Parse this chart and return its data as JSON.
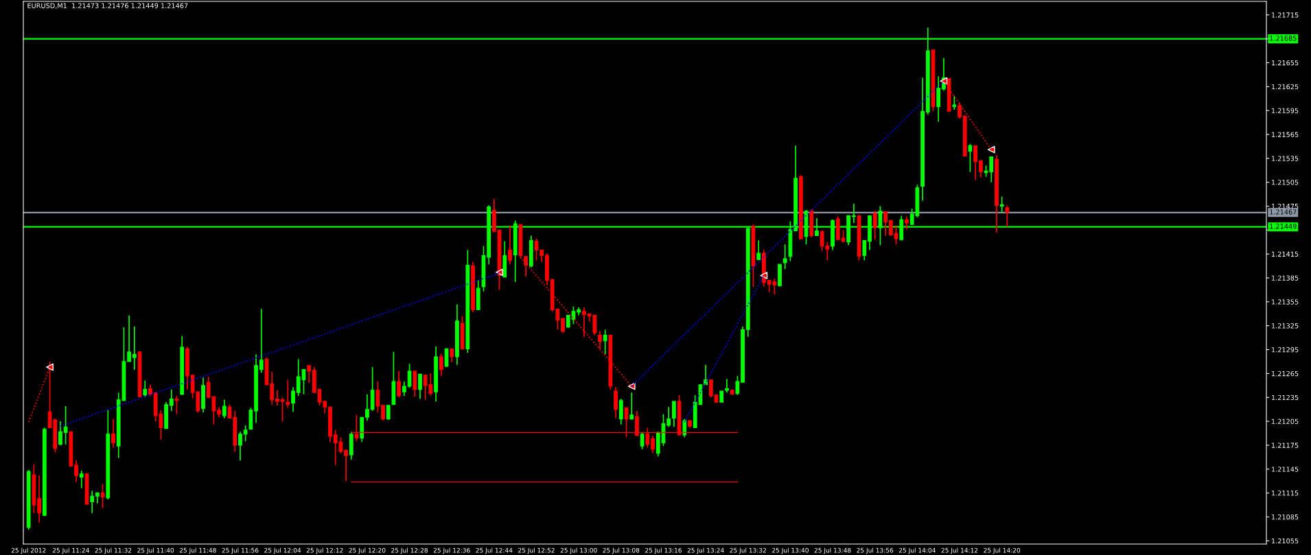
{
  "chart_data": {
    "type": "candlestick",
    "title": "EURUSD,M1  1.21473 1.21476 1.21449 1.21467",
    "colors": [
      "#00ff00",
      "#ff0000",
      "#ff0000",
      "#00ff00",
      "#ff0000",
      "#ff0000",
      "#00ff00",
      "#00ff00",
      "#ff0000",
      "#ff0000",
      "#00ff00",
      "#ff0000",
      "#00ff00",
      "#00ff00",
      "#ff0000",
      "#00ff00",
      "#ff0000",
      "#00ff00",
      "#00ff00",
      "#00ff00",
      "#00ff00",
      "#ff0000",
      "#00ff00",
      "#ff0000",
      "#ff0000",
      "#ff0000",
      "#00ff00",
      "#00ff00",
      "#ff0000",
      "#00ff00",
      "#ff0000",
      "#ff0000",
      "#ff0000",
      "#00ff00",
      "#ff0000",
      "#ff0000",
      "#ff0000",
      "#00ff00",
      "#ff0000",
      "#ff0000",
      "#00ff00",
      "#00ff00",
      "#00ff00",
      "#00ff00",
      "#00ff00",
      "#ff0000",
      "#ff0000",
      "#ff0000",
      "#ff0000",
      "#ff0000",
      "#00ff00",
      "#00ff00",
      "#00ff00",
      "#ff0000",
      "#ff0000",
      "#ff0000",
      "#ff0000",
      "#ff0000",
      "#ff0000",
      "#ff0000",
      "#ff0000",
      "#00ff00",
      "#ff0000",
      "#00ff00",
      "#00ff00",
      "#00ff00",
      "#ff0000",
      "#ff0000",
      "#00ff00",
      "#00ff00",
      "#ff0000",
      "#00ff00",
      "#00ff00",
      "#ff0000",
      "#00ff00",
      "#ff0000",
      "#ff0000",
      "#00ff00",
      "#ff0000",
      "#00ff00",
      "#ff0000",
      "#00ff00",
      "#ff0000",
      "#00ff00",
      "#ff0000",
      "#00ff00",
      "#00ff00",
      "#00ff00",
      "#ff0000",
      "#ff0000",
      "#00ff00",
      "#ff0000",
      "#00ff00",
      "#ff0000",
      "#ff0000",
      "#00ff00",
      "#ff0000",
      "#ff0000",
      "#ff0000",
      "#ff0000",
      "#ff0000",
      "#ff0000",
      "#00ff00",
      "#00ff00",
      "#00ff00",
      "#ff0000",
      "#ff0000",
      "#ff0000",
      "#ff0000",
      "#00ff00",
      "#ff0000",
      "#ff0000",
      "#00ff00",
      "#ff0000",
      "#00ff00",
      "#ff0000",
      "#00ff00",
      "#ff0000",
      "#ff0000",
      "#00ff00",
      "#00ff00",
      "#00ff00",
      "#00ff00",
      "#ff0000",
      "#00ff00",
      "#ff0000",
      "#00ff00",
      "#00ff00",
      "#00ff00",
      "#ff0000",
      "#ff0000",
      "#00ff00",
      "#00ff00",
      "#ff0000",
      "#00ff00",
      "#00ff00",
      "#00ff00",
      "#ff0000",
      "#00ff00",
      "#ff0000",
      "#ff0000",
      "#ff0000",
      "#00ff00",
      "#00ff00",
      "#00ff00",
      "#00ff00",
      "#ff0000",
      "#00ff00",
      "#ff0000",
      "#00ff00",
      "#ff0000",
      "#ff0000",
      "#00ff00",
      "#ff0000",
      "#ff0000",
      "#00ff00",
      "#00ff00",
      "#ff0000",
      "#00ff00",
      "#00ff00",
      "#ff0000",
      "#00ff00",
      "#ff0000",
      "#ff0000",
      "#ff0000",
      "#00ff00",
      "#ff0000",
      "#00ff00",
      "#00ff00",
      "#00ff00",
      "#00ff00",
      "#ff0000",
      "#00ff00",
      "#00ff00",
      "#ff0000",
      "#00ff00",
      "#ff0000",
      "#ff0000",
      "#00ff00",
      "#ff0000",
      "#ff0000",
      "#00ff00",
      "#00ff00",
      "#ff0000",
      "#00ff00",
      "#ff0000"
    ],
    "x": [
      "2012-07-25T11:16",
      "2012-07-25T11:17",
      "2012-07-25T11:18",
      "2012-07-25T11:19",
      "2012-07-25T11:20",
      "2012-07-25T11:21",
      "2012-07-25T11:22",
      "2012-07-25T11:23",
      "2012-07-25T11:24",
      "2012-07-25T11:25",
      "2012-07-25T11:26",
      "2012-07-25T11:27",
      "2012-07-25T11:28",
      "2012-07-25T11:29",
      "2012-07-25T11:30",
      "2012-07-25T11:31",
      "2012-07-25T11:32",
      "2012-07-25T11:33",
      "2012-07-25T11:34",
      "2012-07-25T11:35",
      "2012-07-25T11:36",
      "2012-07-25T11:37",
      "2012-07-25T11:38",
      "2012-07-25T11:39",
      "2012-07-25T11:40",
      "2012-07-25T11:41",
      "2012-07-25T11:42",
      "2012-07-25T11:43",
      "2012-07-25T11:44",
      "2012-07-25T11:45",
      "2012-07-25T11:46",
      "2012-07-25T11:47",
      "2012-07-25T11:48",
      "2012-07-25T11:49",
      "2012-07-25T11:50",
      "2012-07-25T11:51",
      "2012-07-25T11:52",
      "2012-07-25T11:53",
      "2012-07-25T11:54",
      "2012-07-25T11:55",
      "2012-07-25T11:56",
      "2012-07-25T11:57",
      "2012-07-25T11:58",
      "2012-07-25T11:59",
      "2012-07-25T12:00",
      "2012-07-25T12:01",
      "2012-07-25T12:02",
      "2012-07-25T12:03",
      "2012-07-25T12:04",
      "2012-07-25T12:05",
      "2012-07-25T12:06",
      "2012-07-25T12:07",
      "2012-07-25T12:08",
      "2012-07-25T12:09",
      "2012-07-25T12:10",
      "2012-07-25T12:11",
      "2012-07-25T12:12",
      "2012-07-25T12:13",
      "2012-07-25T12:14",
      "2012-07-25T12:15",
      "2012-07-25T12:16",
      "2012-07-25T12:17",
      "2012-07-25T12:18",
      "2012-07-25T12:19",
      "2012-07-25T12:20",
      "2012-07-25T12:21",
      "2012-07-25T12:22",
      "2012-07-25T12:23",
      "2012-07-25T12:24",
      "2012-07-25T12:25",
      "2012-07-25T12:26",
      "2012-07-25T12:27",
      "2012-07-25T12:28",
      "2012-07-25T12:29",
      "2012-07-25T12:30",
      "2012-07-25T12:31",
      "2012-07-25T12:32",
      "2012-07-25T12:33",
      "2012-07-25T12:34",
      "2012-07-25T12:35",
      "2012-07-25T12:36",
      "2012-07-25T12:37",
      "2012-07-25T12:38",
      "2012-07-25T12:39",
      "2012-07-25T12:40",
      "2012-07-25T12:41",
      "2012-07-25T12:42",
      "2012-07-25T12:43",
      "2012-07-25T12:44",
      "2012-07-25T12:45",
      "2012-07-25T12:46",
      "2012-07-25T12:47",
      "2012-07-25T12:48",
      "2012-07-25T12:49",
      "2012-07-25T12:50",
      "2012-07-25T12:51",
      "2012-07-25T12:52",
      "2012-07-25T12:53",
      "2012-07-25T12:54",
      "2012-07-25T12:55",
      "2012-07-25T12:56",
      "2012-07-25T12:57",
      "2012-07-25T12:58",
      "2012-07-25T12:59",
      "2012-07-25T13:00",
      "2012-07-25T13:01",
      "2012-07-25T13:02",
      "2012-07-25T13:03",
      "2012-07-25T13:04",
      "2012-07-25T13:05",
      "2012-07-25T13:06",
      "2012-07-25T13:07",
      "2012-07-25T13:08",
      "2012-07-25T13:09",
      "2012-07-25T13:10",
      "2012-07-25T13:11",
      "2012-07-25T13:12",
      "2012-07-25T13:13",
      "2012-07-25T13:14",
      "2012-07-25T13:15",
      "2012-07-25T13:16",
      "2012-07-25T13:17",
      "2012-07-25T13:18",
      "2012-07-25T13:19",
      "2012-07-25T13:20",
      "2012-07-25T13:21",
      "2012-07-25T13:22",
      "2012-07-25T13:23",
      "2012-07-25T13:24",
      "2012-07-25T13:25",
      "2012-07-25T13:26",
      "2012-07-25T13:27",
      "2012-07-25T13:28",
      "2012-07-25T13:29",
      "2012-07-25T13:30",
      "2012-07-25T13:31",
      "2012-07-25T13:32",
      "2012-07-25T13:33",
      "2012-07-25T13:34",
      "2012-07-25T13:35",
      "2012-07-25T13:36",
      "2012-07-25T13:37",
      "2012-07-25T13:38",
      "2012-07-25T13:39",
      "2012-07-25T13:40",
      "2012-07-25T13:41",
      "2012-07-25T13:42",
      "2012-07-25T13:43",
      "2012-07-25T13:44",
      "2012-07-25T13:45",
      "2012-07-25T13:46",
      "2012-07-25T13:47",
      "2012-07-25T13:48",
      "2012-07-25T13:49",
      "2012-07-25T13:50",
      "2012-07-25T13:51",
      "2012-07-25T13:52",
      "2012-07-25T13:53",
      "2012-07-25T13:54",
      "2012-07-25T13:55",
      "2012-07-25T13:56",
      "2012-07-25T13:57",
      "2012-07-25T13:58",
      "2012-07-25T13:59",
      "2012-07-25T14:00",
      "2012-07-25T14:01",
      "2012-07-25T14:02",
      "2012-07-25T14:03",
      "2012-07-25T14:04",
      "2012-07-25T14:05",
      "2012-07-25T14:06",
      "2012-07-25T14:07",
      "2012-07-25T14:08",
      "2012-07-25T14:09",
      "2012-07-25T14:10",
      "2012-07-25T14:11",
      "2012-07-25T14:12",
      "2012-07-25T14:13",
      "2012-07-25T14:14",
      "2012-07-25T14:15",
      "2012-07-25T14:16",
      "2012-07-25T14:17",
      "2012-07-25T14:18",
      "2012-07-25T14:19",
      "2012-07-25T14:20",
      "2012-07-25T14:21"
    ],
    "ohlc": [
      [
        1.21072,
        1.21144,
        1.21069,
        1.21142
      ],
      [
        1.21138,
        1.21151,
        1.2109,
        1.211
      ],
      [
        1.21108,
        1.21137,
        1.21078,
        1.2109
      ],
      [
        1.21087,
        1.21197,
        1.21086,
        1.21195
      ],
      [
        1.21217,
        1.2128,
        1.21197,
        1.21197
      ],
      [
        1.21207,
        1.21208,
        1.21166,
        1.21171
      ],
      [
        1.21176,
        1.21205,
        1.21175,
        1.21192
      ],
      [
        1.21191,
        1.21224,
        1.21176,
        1.21198
      ],
      [
        1.21192,
        1.21192,
        1.21148,
        1.21149
      ],
      [
        1.2115,
        1.21156,
        1.21129,
        1.21137
      ],
      [
        1.21135,
        1.21143,
        1.21121,
        1.21139
      ],
      [
        1.21139,
        1.2114,
        1.21101,
        1.21101
      ],
      [
        1.21104,
        1.21118,
        1.2109,
        1.21111
      ],
      [
        1.21111,
        1.21116,
        1.21102,
        1.21115
      ],
      [
        1.21115,
        1.21126,
        1.21096,
        1.2111
      ],
      [
        1.21109,
        1.21219,
        1.21107,
        1.21189
      ],
      [
        1.21189,
        1.21208,
        1.21172,
        1.21178
      ],
      [
        1.21174,
        1.21241,
        1.21159,
        1.21232
      ],
      [
        1.21231,
        1.21323,
        1.21231,
        1.2128
      ],
      [
        1.2128,
        1.21338,
        1.2128,
        1.21292
      ],
      [
        1.21285,
        1.21324,
        1.2127,
        1.21289
      ],
      [
        1.21292,
        1.21293,
        1.21235,
        1.21236
      ],
      [
        1.21238,
        1.21256,
        1.21235,
        1.21245
      ],
      [
        1.21246,
        1.21251,
        1.21237,
        1.21239
      ],
      [
        1.21241,
        1.21241,
        1.21205,
        1.21212
      ],
      [
        1.21214,
        1.21219,
        1.21182,
        1.21197
      ],
      [
        1.21196,
        1.21229,
        1.21196,
        1.21226
      ],
      [
        1.21225,
        1.21245,
        1.21218,
        1.21233
      ],
      [
        1.21233,
        1.21237,
        1.21214,
        1.21231
      ],
      [
        1.21239,
        1.21312,
        1.21238,
        1.21298
      ],
      [
        1.21296,
        1.21298,
        1.21245,
        1.21262
      ],
      [
        1.21263,
        1.21263,
        1.21234,
        1.21241
      ],
      [
        1.21242,
        1.21242,
        1.21216,
        1.21218
      ],
      [
        1.21221,
        1.2126,
        1.21216,
        1.2125
      ],
      [
        1.21254,
        1.21261,
        1.21234,
        1.21235
      ],
      [
        1.21236,
        1.21236,
        1.21201,
        1.21218
      ],
      [
        1.21219,
        1.21223,
        1.2121,
        1.21214
      ],
      [
        1.21212,
        1.21232,
        1.21209,
        1.21224
      ],
      [
        1.21223,
        1.21226,
        1.21209,
        1.21209
      ],
      [
        1.2121,
        1.21218,
        1.21167,
        1.21175
      ],
      [
        1.21175,
        1.21192,
        1.21156,
        1.21189
      ],
      [
        1.21189,
        1.212,
        1.2118,
        1.21194
      ],
      [
        1.21195,
        1.21222,
        1.21195,
        1.21219
      ],
      [
        1.21218,
        1.21289,
        1.21203,
        1.21275
      ],
      [
        1.2127,
        1.21346,
        1.21266,
        1.21282
      ],
      [
        1.21283,
        1.21285,
        1.2125,
        1.21251
      ],
      [
        1.21252,
        1.21267,
        1.21226,
        1.21232
      ],
      [
        1.21233,
        1.21244,
        1.21225,
        1.2123
      ],
      [
        1.21232,
        1.21235,
        1.21205,
        1.2123
      ],
      [
        1.21229,
        1.21257,
        1.21222,
        1.21226
      ],
      [
        1.21228,
        1.21248,
        1.21217,
        1.21243
      ],
      [
        1.21241,
        1.21283,
        1.21237,
        1.21261
      ],
      [
        1.21257,
        1.2127,
        1.21239,
        1.2127
      ],
      [
        1.21275,
        1.21275,
        1.21253,
        1.21268
      ],
      [
        1.21269,
        1.21273,
        1.21241,
        1.21241
      ],
      [
        1.21245,
        1.21246,
        1.21225,
        1.21229
      ],
      [
        1.2123,
        1.21231,
        1.21215,
        1.21223
      ],
      [
        1.21223,
        1.21223,
        1.21179,
        1.21186
      ],
      [
        1.21188,
        1.21194,
        1.2115,
        1.21178
      ],
      [
        1.21179,
        1.21185,
        1.21165,
        1.21167
      ],
      [
        1.21169,
        1.21169,
        1.2113,
        1.21162
      ],
      [
        1.21163,
        1.21192,
        1.21157,
        1.21189
      ],
      [
        1.21189,
        1.21213,
        1.2118,
        1.21184
      ],
      [
        1.21184,
        1.2121,
        1.21179,
        1.2121
      ],
      [
        1.2121,
        1.21239,
        1.21206,
        1.2122
      ],
      [
        1.2122,
        1.21273,
        1.21218,
        1.21244
      ],
      [
        1.21244,
        1.21255,
        1.21216,
        1.21224
      ],
      [
        1.21225,
        1.21225,
        1.21206,
        1.21208
      ],
      [
        1.21208,
        1.21225,
        1.21207,
        1.21225
      ],
      [
        1.21226,
        1.21292,
        1.21226,
        1.21255
      ],
      [
        1.21255,
        1.21268,
        1.21235,
        1.21237
      ],
      [
        1.21242,
        1.21255,
        1.21237,
        1.21249
      ],
      [
        1.21249,
        1.21277,
        1.21247,
        1.21268
      ],
      [
        1.21268,
        1.21268,
        1.21236,
        1.21245
      ],
      [
        1.21245,
        1.21265,
        1.21233,
        1.21264
      ],
      [
        1.21263,
        1.21263,
        1.21232,
        1.2125
      ],
      [
        1.21251,
        1.21265,
        1.21237,
        1.2124
      ],
      [
        1.21242,
        1.21299,
        1.2123,
        1.21286
      ],
      [
        1.21286,
        1.2129,
        1.21262,
        1.2127
      ],
      [
        1.21274,
        1.21296,
        1.21273,
        1.21296
      ],
      [
        1.21296,
        1.21296,
        1.21279,
        1.21286
      ],
      [
        1.21286,
        1.21352,
        1.21276,
        1.21331
      ],
      [
        1.21328,
        1.21337,
        1.21295,
        1.21296
      ],
      [
        1.21296,
        1.2142,
        1.21291,
        1.21401
      ],
      [
        1.214,
        1.21405,
        1.21342,
        1.21345
      ],
      [
        1.21345,
        1.21382,
        1.21345,
        1.21372
      ],
      [
        1.21374,
        1.21425,
        1.21368,
        1.21413
      ],
      [
        1.21411,
        1.21476,
        1.21402,
        1.21474
      ],
      [
        1.2147,
        1.21484,
        1.21443,
        1.21443
      ],
      [
        1.21445,
        1.21445,
        1.2137,
        1.21388
      ],
      [
        1.21386,
        1.21431,
        1.21386,
        1.21413
      ],
      [
        1.2142,
        1.21451,
        1.21402,
        1.21407
      ],
      [
        1.21414,
        1.21457,
        1.2138,
        1.21453
      ],
      [
        1.21452,
        1.21452,
        1.21409,
        1.21413
      ],
      [
        1.21412,
        1.21412,
        1.21387,
        1.21401
      ],
      [
        1.214,
        1.21438,
        1.21398,
        1.21432
      ],
      [
        1.21431,
        1.21434,
        1.21407,
        1.2142
      ],
      [
        1.2142,
        1.2142,
        1.21405,
        1.21413
      ],
      [
        1.21413,
        1.21416,
        1.21376,
        1.21382
      ],
      [
        1.21383,
        1.21383,
        1.21343,
        1.21345
      ],
      [
        1.21346,
        1.21346,
        1.2132,
        1.21332
      ],
      [
        1.21334,
        1.21335,
        1.21316,
        1.21318
      ],
      [
        1.21323,
        1.21338,
        1.21323,
        1.21338
      ],
      [
        1.21333,
        1.21349,
        1.21327,
        1.21343
      ],
      [
        1.21342,
        1.21348,
        1.21338,
        1.21345
      ],
      [
        1.21343,
        1.21348,
        1.21311,
        1.21339
      ],
      [
        1.2134,
        1.2134,
        1.2133,
        1.21337
      ],
      [
        1.21338,
        1.21338,
        1.21313,
        1.21316
      ],
      [
        1.21313,
        1.21318,
        1.21295,
        1.21305
      ],
      [
        1.21306,
        1.2132,
        1.21289,
        1.21313
      ],
      [
        1.21313,
        1.21313,
        1.21245,
        1.21249
      ],
      [
        1.21243,
        1.21248,
        1.21209,
        1.2122
      ],
      [
        1.21208,
        1.21233,
        1.21201,
        1.21231
      ],
      [
        1.21222,
        1.21222,
        1.21185,
        1.21208
      ],
      [
        1.21208,
        1.21241,
        1.21207,
        1.21213
      ],
      [
        1.21211,
        1.21218,
        1.21187,
        1.21187
      ],
      [
        1.21174,
        1.21191,
        1.2117,
        1.21189
      ],
      [
        1.21189,
        1.21197,
        1.21172,
        1.21176
      ],
      [
        1.21183,
        1.21187,
        1.21165,
        1.2117
      ],
      [
        1.21165,
        1.21192,
        1.21161,
        1.21191
      ],
      [
        1.21178,
        1.21214,
        1.21174,
        1.21202
      ],
      [
        1.212,
        1.21223,
        1.21198,
        1.21208
      ],
      [
        1.21209,
        1.2123,
        1.21198,
        1.2123
      ],
      [
        1.2123,
        1.21238,
        1.21188,
        1.21188
      ],
      [
        1.21188,
        1.21208,
        1.21185,
        1.21206
      ],
      [
        1.21206,
        1.21206,
        1.21197,
        1.21199
      ],
      [
        1.21197,
        1.21238,
        1.21197,
        1.21229
      ],
      [
        1.21226,
        1.21251,
        1.21226,
        1.21251
      ],
      [
        1.21251,
        1.21276,
        1.21251,
        1.21257
      ],
      [
        1.21257,
        1.21257,
        1.21235,
        1.21237
      ],
      [
        1.21238,
        1.21239,
        1.21228,
        1.21229
      ],
      [
        1.21229,
        1.21243,
        1.21229,
        1.21243
      ],
      [
        1.21244,
        1.21258,
        1.21241,
        1.21246
      ],
      [
        1.21244,
        1.21245,
        1.21239,
        1.21239
      ],
      [
        1.2124,
        1.21262,
        1.21238,
        1.21255
      ],
      [
        1.21254,
        1.21324,
        1.21254,
        1.2132
      ],
      [
        1.2132,
        1.21449,
        1.21311,
        1.21447
      ],
      [
        1.2145,
        1.21452,
        1.21374,
        1.214
      ],
      [
        1.21408,
        1.21432,
        1.21408,
        1.21416
      ],
      [
        1.21416,
        1.2142,
        1.21374,
        1.21379
      ],
      [
        1.21382,
        1.21382,
        1.21367,
        1.21377
      ],
      [
        1.2138,
        1.21384,
        1.21364,
        1.21376
      ],
      [
        1.21375,
        1.21402,
        1.21375,
        1.21402
      ],
      [
        1.21404,
        1.21427,
        1.21396,
        1.21409
      ],
      [
        1.21412,
        1.21456,
        1.21406,
        1.21446
      ],
      [
        1.21444,
        1.21551,
        1.21444,
        1.2151
      ],
      [
        1.21512,
        1.21514,
        1.21434,
        1.21434
      ],
      [
        1.21437,
        1.2147,
        1.21427,
        1.21469
      ],
      [
        1.21469,
        1.21471,
        1.21436,
        1.21438
      ],
      [
        1.21438,
        1.2146,
        1.21438,
        1.21444
      ],
      [
        1.21443,
        1.21445,
        1.21419,
        1.21425
      ],
      [
        1.21425,
        1.2143,
        1.21407,
        1.21421
      ],
      [
        1.21425,
        1.21458,
        1.2142,
        1.21457
      ],
      [
        1.21459,
        1.21462,
        1.21433,
        1.21433
      ],
      [
        1.21435,
        1.21445,
        1.21429,
        1.21431
      ],
      [
        1.2143,
        1.21464,
        1.21426,
        1.21463
      ],
      [
        1.21462,
        1.21478,
        1.21454,
        1.21463
      ],
      [
        1.21463,
        1.21464,
        1.21407,
        1.21412
      ],
      [
        1.21413,
        1.21432,
        1.21407,
        1.21432
      ],
      [
        1.21431,
        1.21463,
        1.2142,
        1.21463
      ],
      [
        1.21466,
        1.21469,
        1.21433,
        1.21448
      ],
      [
        1.21448,
        1.21475,
        1.21426,
        1.21469
      ],
      [
        1.21468,
        1.21468,
        1.21438,
        1.21455
      ],
      [
        1.21457,
        1.21457,
        1.21438,
        1.21439
      ],
      [
        1.21441,
        1.21451,
        1.21427,
        1.21434
      ],
      [
        1.21433,
        1.21463,
        1.21432,
        1.21458
      ],
      [
        1.21458,
        1.21462,
        1.21446,
        1.21454
      ],
      [
        1.21452,
        1.21472,
        1.21452,
        1.21465
      ],
      [
        1.21463,
        1.21502,
        1.21461,
        1.21498
      ],
      [
        1.215,
        1.21636,
        1.21482,
        1.21594
      ],
      [
        1.21593,
        1.21699,
        1.2159,
        1.2167
      ],
      [
        1.21671,
        1.21671,
        1.21594,
        1.216
      ],
      [
        1.216,
        1.21638,
        1.21581,
        1.21623
      ],
      [
        1.21622,
        1.21661,
        1.2162,
        1.21636
      ],
      [
        1.21635,
        1.21635,
        1.21594,
        1.21594
      ],
      [
        1.216,
        1.21613,
        1.21596,
        1.21602
      ],
      [
        1.21601,
        1.21605,
        1.21585,
        1.21587
      ],
      [
        1.21588,
        1.21589,
        1.21538,
        1.21538
      ],
      [
        1.21544,
        1.21553,
        1.21518,
        1.21551
      ],
      [
        1.21551,
        1.21551,
        1.21508,
        1.21531
      ],
      [
        1.21532,
        1.21533,
        1.21511,
        1.21518
      ],
      [
        1.21517,
        1.21526,
        1.21512,
        1.21519
      ],
      [
        1.21518,
        1.21537,
        1.21505,
        1.21537
      ],
      [
        1.21534,
        1.21539,
        1.21442,
        1.21476
      ],
      [
        1.21475,
        1.21487,
        1.21467,
        1.21477
      ],
      [
        1.21473,
        1.21476,
        1.21449,
        1.21467
      ]
    ],
    "series": [
      {
        "type": "line",
        "color": "#ff0000",
        "line_style": "solid",
        "x": [
          "2012-07-25T12:17",
          "2012-07-25T13:30"
        ],
        "values": [
          1.21191,
          1.21191
        ]
      },
      {
        "type": "line",
        "color": "#ff0000",
        "line_style": "solid",
        "x": [
          "2012-07-25T12:17",
          "2012-07-25T13:30"
        ],
        "values": [
          1.21129,
          1.21129
        ]
      },
      {
        "type": "line",
        "color": "#ff0000",
        "line_style": "dotted",
        "x": [
          "2012-07-25T11:16",
          "2012-07-25T11:20"
        ],
        "values": [
          1.21204,
          1.21273
        ]
      },
      {
        "type": "line",
        "color": "#0000ff",
        "line_style": "dotted",
        "x": [
          "2012-07-25T11:22",
          "2012-07-25T12:45"
        ],
        "values": [
          1.21199,
          1.21391
        ]
      },
      {
        "type": "line",
        "color": "#ff0000",
        "line_style": "dotted",
        "x": [
          "2012-07-25T12:49",
          "2012-07-25T13:10"
        ],
        "values": [
          1.21411,
          1.21249
        ]
      },
      {
        "type": "line",
        "color": "#0000ff",
        "line_style": "dotted",
        "x": [
          "2012-07-25T13:10",
          "2012-07-25T14:09"
        ],
        "values": [
          1.21249,
          1.21632
        ]
      },
      {
        "type": "line",
        "color": "#0000ff",
        "line_style": "dotted",
        "x": [
          "2012-07-25T13:20",
          "2012-07-25T13:35"
        ],
        "values": [
          1.21204,
          1.21388
        ]
      },
      {
        "type": "line",
        "color": "#ff0000",
        "line_style": "dotted",
        "x": [
          "2012-07-25T14:09",
          "2012-07-25T14:18"
        ],
        "values": [
          1.21632,
          1.21546
        ]
      },
      {
        "type": "scatter",
        "color": "#ff0000",
        "marker": "triangle",
        "x": [
          "2012-07-25T11:20",
          "2012-07-25T12:45",
          "2012-07-25T13:10",
          "2012-07-25T13:35",
          "2012-07-25T14:09",
          "2012-07-25T14:18"
        ],
        "values": [
          1.21273,
          1.21392,
          1.21249,
          1.21388,
          1.21632,
          1.21546
        ]
      }
    ],
    "ref_lines": [
      {
        "axis": "y",
        "value": 1.21685,
        "label": "1.21685",
        "color": "#00ff00"
      },
      {
        "axis": "y",
        "value": 1.21449,
        "label": "1.21449",
        "color": "#00ff00"
      },
      {
        "axis": "y",
        "value": 1.21467,
        "label": "1.21467",
        "color": "#8c9aa8"
      }
    ],
    "xlim": [
      "2012-07-25T11:15",
      "2012-07-25T15:10"
    ],
    "xticks": [
      {
        "value": "2012-07-25T11:16",
        "label": "25 Jul 2012"
      },
      {
        "value": "2012-07-25T11:24",
        "label": "25 Jul 11:24"
      },
      {
        "value": "2012-07-25T11:32",
        "label": "25 Jul 11:32"
      },
      {
        "value": "2012-07-25T11:40",
        "label": "25 Jul 11:40"
      },
      {
        "value": "2012-07-25T11:48",
        "label": "25 Jul 11:48"
      },
      {
        "value": "2012-07-25T11:56",
        "label": "25 Jul 11:56"
      },
      {
        "value": "2012-07-25T12:04",
        "label": "25 Jul 12:04"
      },
      {
        "value": "2012-07-25T12:12",
        "label": "25 Jul 12:12"
      },
      {
        "value": "2012-07-25T12:20",
        "label": "25 Jul 12:20"
      },
      {
        "value": "2012-07-25T12:28",
        "label": "25 Jul 12:28"
      },
      {
        "value": "2012-07-25T12:36",
        "label": "25 Jul 12:36"
      },
      {
        "value": "2012-07-25T12:44",
        "label": "25 Jul 12:44"
      },
      {
        "value": "2012-07-25T12:52",
        "label": "25 Jul 12:52"
      },
      {
        "value": "2012-07-25T13:00",
        "label": "25 Jul 13:00"
      },
      {
        "value": "2012-07-25T13:08",
        "label": "25 Jul 13:08"
      },
      {
        "value": "2012-07-25T13:16",
        "label": "25 Jul 13:16"
      },
      {
        "value": "2012-07-25T13:24",
        "label": "25 Jul 13:24"
      },
      {
        "value": "2012-07-25T13:32",
        "label": "25 Jul 13:32"
      },
      {
        "value": "2012-07-25T13:40",
        "label": "25 Jul 13:40"
      },
      {
        "value": "2012-07-25T13:48",
        "label": "25 Jul 13:48"
      },
      {
        "value": "2012-07-25T13:56",
        "label": "25 Jul 13:56"
      },
      {
        "value": "2012-07-25T14:04",
        "label": "25 Jul 14:04"
      },
      {
        "value": "2012-07-25T14:12",
        "label": "25 Jul 14:12"
      },
      {
        "value": "2012-07-25T14:20",
        "label": "25 Jul 14:20"
      }
    ],
    "ylim": [
      1.21051,
      1.21732
    ],
    "yticks": [
      1.21055,
      1.21085,
      1.21115,
      1.21145,
      1.21175,
      1.21205,
      1.21235,
      1.21265,
      1.21295,
      1.21325,
      1.21355,
      1.21385,
      1.21415,
      {
        "value": 1.21445,
        "label": null
      },
      1.21475,
      1.21505,
      1.21535,
      1.21565,
      1.21595,
      1.21625,
      1.21655,
      {
        "value": 1.21685,
        "label": null
      },
      1.21715
    ]
  }
}
